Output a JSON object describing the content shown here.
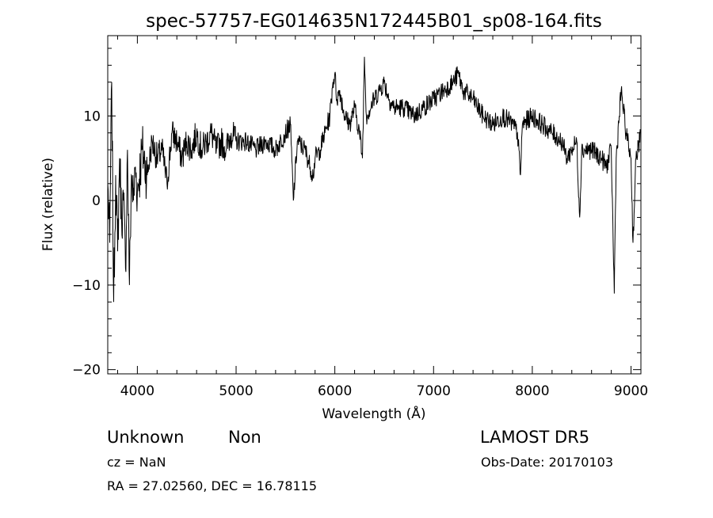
{
  "chart_data": {
    "type": "line",
    "title": "spec-57757-EG014635N172445B01_sp08-164.fits",
    "xlabel": "Wavelength (Å)",
    "ylabel": "Flux (relative)",
    "xlim": [
      3700,
      9100
    ],
    "ylim": [
      -20.5,
      19.5
    ],
    "xticks": [
      4000,
      5000,
      6000,
      7000,
      8000,
      9000
    ],
    "yticks": [
      -20,
      -10,
      0,
      10
    ],
    "xtick_labels": [
      "4000",
      "5000",
      "6000",
      "7000",
      "8000",
      "9000"
    ],
    "ytick_labels": [
      "−20",
      "−10",
      "0",
      "10"
    ],
    "grid": false,
    "series": [
      {
        "x": [
          3700,
          3720,
          3740,
          3760,
          3780,
          3800,
          3820,
          3840,
          3860,
          3880,
          3900,
          3920,
          3940,
          3960,
          3980,
          4000,
          4050,
          4100,
          4150,
          4200,
          4250,
          4300,
          4350,
          4400,
          4450,
          4500,
          4550,
          4600,
          4650,
          4700,
          4750,
          4800,
          4850,
          4900,
          4950,
          5000,
          5100,
          5200,
          5300,
          5400,
          5500,
          5550,
          5580,
          5620,
          5700,
          5750,
          5780,
          5800,
          5850,
          5900,
          5950,
          5980,
          6000,
          6020,
          6050,
          6100,
          6150,
          6200,
          6250,
          6280,
          6300,
          6320,
          6400,
          6450,
          6500,
          6550,
          6600,
          6700,
          6800,
          6900,
          7000,
          7100,
          7200,
          7250,
          7300,
          7400,
          7500,
          7600,
          7700,
          7800,
          7850,
          7880,
          7900,
          8000,
          8100,
          8200,
          8300,
          8350,
          8400,
          8450,
          8480,
          8500,
          8600,
          8700,
          8750,
          8800,
          8830,
          8850,
          8900,
          8950,
          9000,
          9020,
          9050,
          9100
        ],
        "y": [
          2,
          -5,
          14,
          -12,
          3,
          -6,
          5,
          -2,
          0,
          -8,
          6,
          -10,
          3,
          0,
          4,
          1,
          6,
          3,
          7,
          5,
          6,
          2,
          8,
          7,
          5,
          7,
          6,
          8,
          6,
          7,
          8,
          6,
          7,
          6,
          8,
          7,
          7,
          6,
          7,
          6,
          8,
          9,
          0,
          7,
          6,
          4,
          3,
          5,
          6,
          8,
          10,
          14,
          15,
          12,
          13,
          10,
          9,
          11,
          8,
          5,
          17,
          10,
          12,
          13,
          14,
          12,
          11,
          11,
          10,
          11,
          12,
          13,
          14,
          15,
          13,
          12,
          10,
          9,
          10,
          9,
          8,
          3,
          9,
          10,
          9,
          8,
          7,
          5,
          6,
          7,
          -2,
          6,
          6,
          5,
          4,
          6,
          -11,
          5,
          13,
          8,
          5,
          -5,
          5,
          8
        ]
      }
    ]
  },
  "footer": {
    "object_class": "Unknown",
    "subclass": "Non",
    "survey": "LAMOST DR5",
    "cz": "cz = NaN",
    "obs_date": "Obs-Date: 20170103",
    "coords": "RA =  27.02560, DEC =  16.78115"
  }
}
